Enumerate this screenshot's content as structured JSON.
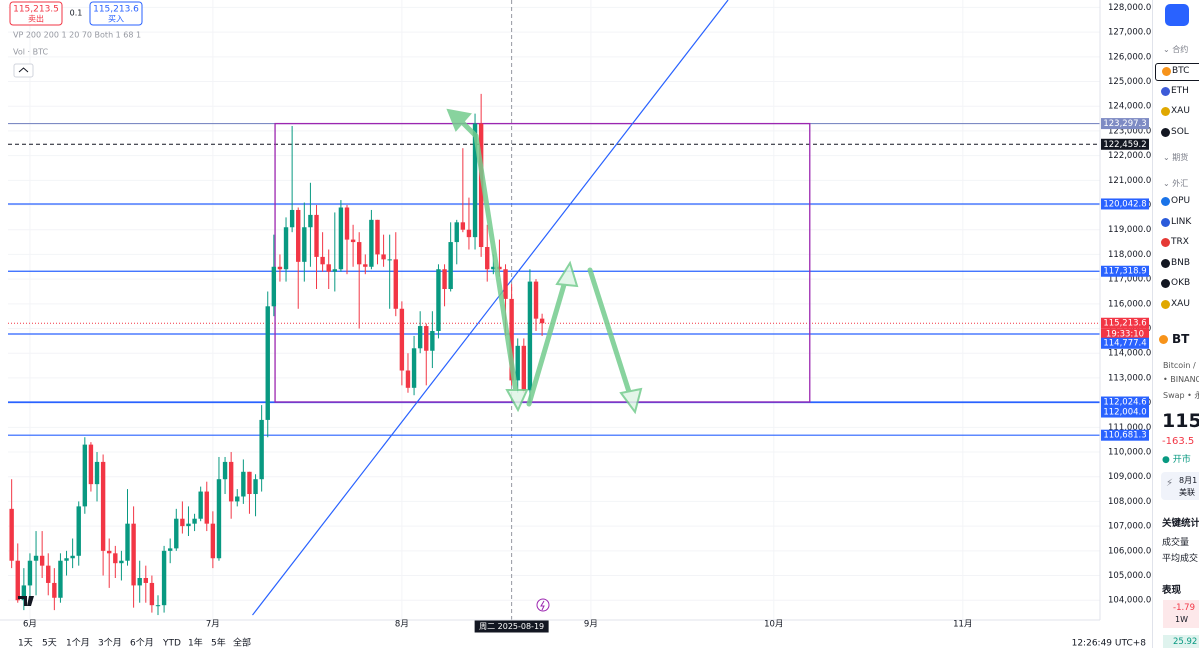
{
  "header": {
    "sell_price": "115,213.5",
    "sell_label": "卖出",
    "spread": "0.1",
    "buy_price": "115,213.6",
    "buy_label": "买入",
    "indicator_vp": "VP 200 200 1 20 70 Both 1 68 1",
    "indicator_vol": "Vol · BTC"
  },
  "chart_data": {
    "type": "candlestick",
    "x": [
      -3,
      -2,
      -1,
      0,
      1,
      2,
      3,
      4,
      5,
      6,
      7,
      8,
      9,
      10,
      11,
      12,
      13,
      14,
      15,
      16,
      17,
      18,
      19,
      20,
      21,
      22,
      23,
      24,
      25,
      26,
      27,
      28,
      29,
      30,
      31,
      32,
      33,
      34,
      35,
      36,
      37,
      38,
      39,
      40,
      41,
      42,
      43,
      44,
      45,
      46,
      47,
      48,
      49,
      50,
      51,
      52,
      53,
      54,
      55,
      56,
      57,
      58,
      59,
      60,
      61,
      62,
      63,
      64,
      65,
      66,
      67,
      68,
      69,
      70,
      71,
      72,
      73,
      74,
      75,
      76,
      77,
      78,
      79,
      80,
      81,
      82,
      83,
      84
    ],
    "open": [
      107700,
      105600,
      104000,
      104600,
      105600,
      105800,
      105400,
      104700,
      104100,
      105600,
      105700,
      105800,
      107800,
      110300,
      108700,
      109600,
      106000,
      105900,
      105500,
      105600,
      107100,
      104600,
      104900,
      104700,
      103800,
      103800,
      106000,
      106100,
      107300,
      107000,
      107100,
      107300,
      108400,
      107100,
      105700,
      108900,
      109600,
      108000,
      108200,
      109200,
      108300,
      108900,
      111300,
      115900,
      117500,
      117400,
      119100,
      119800,
      117700,
      119100,
      119600,
      117900,
      117600,
      117300,
      117400,
      119900,
      118600,
      118500,
      117600,
      117500,
      119400,
      118000,
      117800,
      117800,
      115800,
      113300,
      112600,
      114200,
      115100,
      114100,
      114900,
      117400,
      116600,
      118500,
      119300,
      119000,
      118700,
      123300,
      118300,
      117400,
      117500,
      117400,
      116200,
      112900,
      114300,
      112500,
      116900,
      115400
    ],
    "high": [
      108900,
      106300,
      105300,
      105900,
      106800,
      106800,
      105900,
      105300,
      105900,
      106000,
      106500,
      108000,
      110600,
      110400,
      110000,
      109900,
      106500,
      106200,
      106000,
      108500,
      107800,
      105600,
      105400,
      105000,
      104200,
      106200,
      106500,
      107700,
      108000,
      107800,
      107500,
      108600,
      108800,
      107600,
      109800,
      109800,
      110000,
      108500,
      109700,
      109200,
      109100,
      111900,
      116500,
      118800,
      118000,
      119500,
      123200,
      119900,
      120100,
      120900,
      120000,
      118900,
      118200,
      119700,
      120200,
      120000,
      119200,
      118900,
      118000,
      119800,
      119400,
      118800,
      118800,
      118900,
      116100,
      114000,
      114700,
      115700,
      115200,
      115700,
      117600,
      117600,
      119300,
      119400,
      122300,
      120300,
      123700,
      124500,
      119200,
      118000,
      118600,
      117600,
      116800,
      114600,
      114600,
      117400,
      117000,
      115600
    ],
    "low": [
      105300,
      103900,
      103600,
      103900,
      104200,
      104900,
      104200,
      103600,
      103900,
      105000,
      105300,
      105400,
      107500,
      108400,
      108000,
      105000,
      104500,
      104900,
      104800,
      105400,
      103700,
      103900,
      103900,
      103500,
      103400,
      103500,
      105500,
      106000,
      106700,
      106600,
      106800,
      107200,
      106800,
      105300,
      105600,
      108300,
      107300,
      107800,
      107900,
      107500,
      107400,
      108400,
      110600,
      115500,
      116900,
      116900,
      118900,
      115800,
      116900,
      117500,
      116600,
      117300,
      116600,
      116500,
      117300,
      117200,
      117500,
      115000,
      117200,
      117400,
      117600,
      117500,
      115800,
      115500,
      112700,
      112400,
      112300,
      114000,
      112700,
      113400,
      114600,
      115900,
      116500,
      117600,
      118900,
      118200,
      118200,
      117900,
      116900,
      117200,
      117100,
      114700,
      112700,
      112400,
      112400,
      112000,
      114900,
      114700
    ],
    "close": [
      105600,
      104000,
      104600,
      105600,
      105800,
      105400,
      104700,
      104100,
      105600,
      105700,
      105800,
      107800,
      110300,
      108700,
      109600,
      106000,
      105900,
      105500,
      105600,
      107100,
      104600,
      104900,
      104700,
      103800,
      103800,
      106000,
      106100,
      107300,
      107000,
      107100,
      107300,
      108400,
      107100,
      105700,
      108900,
      109600,
      108000,
      108200,
      109200,
      108300,
      108900,
      111300,
      115900,
      117500,
      117400,
      119100,
      119800,
      117700,
      119100,
      119600,
      117900,
      117600,
      117300,
      117400,
      119900,
      118600,
      118500,
      117600,
      117500,
      119400,
      118000,
      117800,
      117800,
      115800,
      113300,
      112600,
      114200,
      115100,
      114100,
      114900,
      117400,
      116600,
      118500,
      119300,
      119000,
      118700,
      123300,
      118300,
      117400,
      117500,
      117400,
      116200,
      112900,
      114300,
      112500,
      116900,
      115400,
      115213.6
    ],
    "up_color": "#089981",
    "down_color": "#f23645",
    "xlim": [
      -3.6,
      175.5
    ],
    "xticks": [
      {
        "value": 0,
        "label": "6月"
      },
      {
        "value": 30,
        "label": "7月"
      },
      {
        "value": 61,
        "label": "8月"
      },
      {
        "value": 92,
        "label": "9月"
      },
      {
        "value": 122,
        "label": "10月"
      },
      {
        "value": 153,
        "label": "11月"
      }
    ],
    "ylim": [
      103200,
      128300
    ],
    "yticks": [
      {
        "value": 104000,
        "label": "104,000.0"
      },
      {
        "value": 105000,
        "label": "105,000.0"
      },
      {
        "value": 106000,
        "label": "106,000.0"
      },
      {
        "value": 107000,
        "label": "107,000.0"
      },
      {
        "value": 108000,
        "label": "108,000.0"
      },
      {
        "value": 109000,
        "label": "109,000.0"
      },
      {
        "value": 110000,
        "label": "110,000.0"
      },
      {
        "value": 111000,
        "label": "111,000.0"
      },
      {
        "value": 112000,
        "label": "112,000.0"
      },
      {
        "value": 113000,
        "label": "113,000.0"
      },
      {
        "value": 114000,
        "label": "114,000.0"
      },
      {
        "value": 115000,
        "label": "115,000.0"
      },
      {
        "value": 116000,
        "label": "116,000.0"
      },
      {
        "value": 117000,
        "label": "117,000.0"
      },
      {
        "value": 118000,
        "label": "118,000.0"
      },
      {
        "value": 119000,
        "label": "119,000.0"
      },
      {
        "value": 120000,
        "label": "120,000.0"
      },
      {
        "value": 121000,
        "label": "121,000.0"
      },
      {
        "value": 122000,
        "label": "122,000.0"
      },
      {
        "value": 123000,
        "label": "123,000.0"
      },
      {
        "value": 124000,
        "label": "124,000.0"
      },
      {
        "value": 125000,
        "label": "125,000.0"
      },
      {
        "value": 126000,
        "label": "126,000.0"
      },
      {
        "value": 127000,
        "label": "127,000.0"
      },
      {
        "value": 128000,
        "label": "128,000.0"
      }
    ],
    "grid": true,
    "price_lines": [
      {
        "value": 123297.3,
        "label": "123,297.3",
        "color": "#7e8bc4",
        "style": "solid"
      },
      {
        "value": 122459.2,
        "label": "122,459.2",
        "color": "#131722",
        "style": "dashed"
      },
      {
        "value": 120042.8,
        "label": "120,042.8",
        "color": "#2962ff",
        "style": "solid"
      },
      {
        "value": 117318.9,
        "label": "117,318.9",
        "color": "#2962ff",
        "style": "solid"
      },
      {
        "value": 115213.6,
        "label": "115,213.6",
        "color": "#f23645",
        "style": "dotted"
      },
      {
        "value": 114777.4,
        "label": "114,777.4",
        "color": "#2962ff",
        "style": "solid"
      },
      {
        "value": 112024.6,
        "label": "112,024.6",
        "color": "#2962ff",
        "style": "solid"
      },
      {
        "value": 112004,
        "label": "112,004.0",
        "color": "#2962ff",
        "style": "solid"
      },
      {
        "value": 110681.3,
        "label": "110,681.3",
        "color": "#2962ff",
        "style": "solid"
      }
    ],
    "countdown": "19:33:10",
    "box": {
      "x": [
        40.2,
        127.9
      ],
      "y": [
        112024.6,
        123297.3
      ],
      "color": "#9c27b0"
    },
    "trendline": {
      "x": [
        36.5,
        114.5
      ],
      "y": [
        103400,
        128300
      ],
      "color": "#2962ff"
    },
    "crosshair": {
      "x": 79,
      "label": "周二 2025-08-19"
    }
  },
  "toolbar": {
    "ranges": [
      "1天",
      "5天",
      "1个月",
      "3个月",
      "6个月",
      "YTD",
      "1年",
      "5年",
      "全部"
    ],
    "clock": "12:26:49 UTC+8"
  },
  "sidebar": {
    "section_contracts": "合约",
    "items": [
      "BTC",
      "ETH",
      "XAU",
      "SOL"
    ],
    "section_futures": "期货",
    "section_fx": "外汇",
    "items2": [
      "OPU",
      "LINK",
      "TRX",
      "BNB",
      "OKB",
      "XAU"
    ],
    "symbol": "BT",
    "name": "Bitcoin /",
    "exchange": "• BINANC",
    "kind": "Swap • 永",
    "price": "115",
    "change": "-163.5",
    "status": "开市",
    "news": [
      "8月1",
      "美联"
    ],
    "stats_title": "关键统计",
    "stats": [
      "成交量",
      "平均成交"
    ],
    "perf_title": "表现",
    "perf_value": "-1.79",
    "perf_period": "1W",
    "perf_value2": "25.92"
  }
}
